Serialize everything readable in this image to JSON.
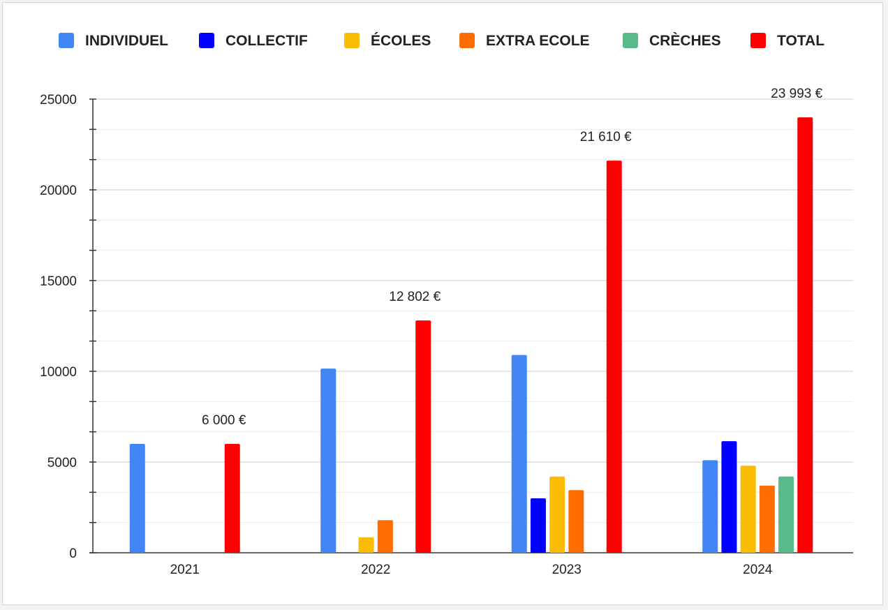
{
  "chart_data": {
    "type": "bar",
    "title": "",
    "xlabel": "",
    "ylabel": "",
    "categories": [
      "2021",
      "2022",
      "2023",
      "2024"
    ],
    "ylim": [
      0,
      25000
    ],
    "yticks": [
      "0",
      "5000",
      "10000",
      "15000",
      "20000",
      "25000"
    ],
    "grid": true,
    "legend_position": "top",
    "series": [
      {
        "name": "INDIVIDUEL",
        "color": "#4285f4",
        "values": [
          6000,
          10150,
          10900,
          5100
        ]
      },
      {
        "name": "COLLECTIF",
        "color": "#0000ff",
        "values": [
          0,
          0,
          3000,
          6150
        ]
      },
      {
        "name": "ÉCOLES",
        "color": "#fbbc04",
        "values": [
          0,
          850,
          4200,
          4800
        ]
      },
      {
        "name": "EXTRA ECOLE",
        "color": "#ff6d01",
        "values": [
          0,
          1800,
          3450,
          3700
        ]
      },
      {
        "name": "CRÈCHES",
        "color": "#57bb8a",
        "values": [
          0,
          0,
          0,
          4200
        ]
      },
      {
        "name": "TOTAL",
        "color": "#ff0000",
        "values": [
          6000,
          12802,
          21610,
          23993
        ]
      }
    ],
    "total_labels": [
      "6 000 €",
      "12 802 €",
      "21 610 €",
      "23 993 €"
    ]
  }
}
